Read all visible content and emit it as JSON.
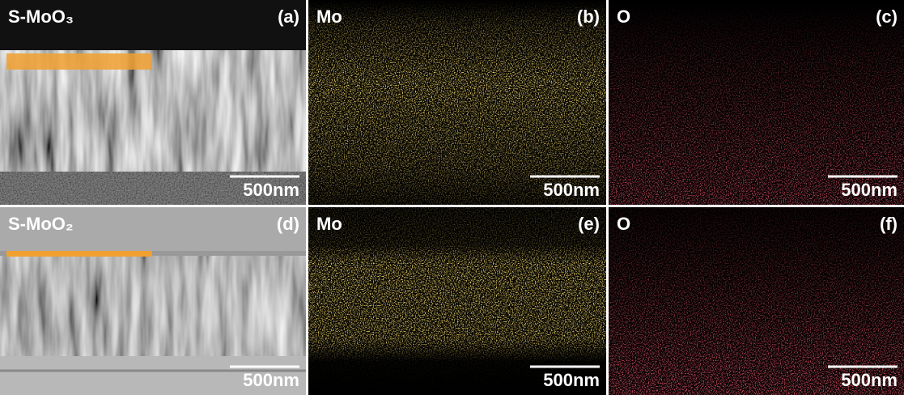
{
  "panels": [
    {
      "label": "S-MoO₃",
      "letter": "(a)",
      "scale_bar": "500nm"
    },
    {
      "label": "Mo",
      "letter": "(b)",
      "scale_bar": "500nm"
    },
    {
      "label": "O",
      "letter": "(c)",
      "scale_bar": "500nm"
    },
    {
      "label": "S-MoO₂",
      "letter": "(d)",
      "scale_bar": "500nm"
    },
    {
      "label": "Mo",
      "letter": "(e)",
      "scale_bar": "500nm"
    },
    {
      "label": "O",
      "letter": "(f)",
      "scale_bar": "500nm"
    }
  ]
}
